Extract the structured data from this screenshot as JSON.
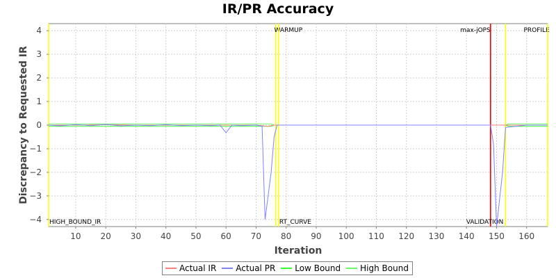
{
  "chart_data": {
    "type": "line",
    "title": "IR/PR Accuracy",
    "xlabel": "Iteration",
    "ylabel": "Discrepancy to Requested IR",
    "xlim": [
      1,
      167
    ],
    "ylim": [
      -4.3,
      4.3
    ],
    "x_ticks": [
      10,
      20,
      30,
      40,
      50,
      60,
      70,
      80,
      90,
      100,
      110,
      120,
      130,
      140,
      150,
      160
    ],
    "y_ticks": [
      -4,
      -3,
      -2,
      -1,
      0,
      1,
      2,
      3,
      4
    ],
    "grid": true,
    "legend_position": "bottom",
    "markers": [
      {
        "label": "HIGH_BOUND_IR",
        "x": 1,
        "color": "#ffff00",
        "label_position": "bottom"
      },
      {
        "label": "WARMUP",
        "x": 76.5,
        "color": "#ffff00",
        "label_position": "top"
      },
      {
        "label": "RT_CURVE",
        "x": 77.5,
        "color": "#ffff00",
        "label_position": "bottom"
      },
      {
        "label": "max-jOPS",
        "x": 148,
        "color": "#ff0000",
        "label_position": "top"
      },
      {
        "label": "VALIDATION",
        "x": 148,
        "color": "#ff0000",
        "label_position": "bottom"
      },
      {
        "label": "PROFILE",
        "x": 153,
        "color": "#ffff00",
        "label_position": "top"
      },
      {
        "label": "",
        "x": 167,
        "color": "#ffff00",
        "label_position": "none"
      }
    ],
    "series": [
      {
        "name": "Actual IR",
        "color": "#ff7f7f",
        "x": [
          1,
          10,
          20,
          30,
          40,
          50,
          60,
          70,
          74,
          76,
          80,
          100,
          120,
          140,
          147,
          150,
          153,
          160,
          167
        ],
        "y": [
          0,
          0,
          0.02,
          0,
          0,
          0,
          0,
          0,
          -0.05,
          0,
          0,
          0,
          0,
          0,
          0,
          0,
          0,
          0,
          0
        ]
      },
      {
        "name": "Actual PR",
        "color": "#8080ff",
        "x": [
          1,
          5,
          10,
          15,
          20,
          25,
          30,
          35,
          40,
          45,
          50,
          55,
          58,
          60,
          62,
          65,
          70,
          72,
          73,
          75,
          76,
          77,
          80,
          100,
          120,
          140,
          147,
          148,
          149,
          150,
          152,
          153,
          160,
          167
        ],
        "y": [
          0,
          -0.03,
          0.02,
          -0.02,
          0.03,
          -0.03,
          0,
          -0.02,
          0.02,
          -0.02,
          0,
          -0.02,
          0,
          -0.32,
          0,
          -0.02,
          0,
          -0.05,
          -4.0,
          -2.0,
          -0.5,
          0,
          0,
          0,
          0,
          0,
          0,
          0,
          -0.8,
          -4.3,
          -2.0,
          -0.1,
          0,
          0
        ]
      },
      {
        "name": "Low Bound",
        "color": "#33ff33",
        "x": [
          1,
          75,
          76,
          153,
          154,
          167
        ],
        "y": [
          -0.05,
          -0.05,
          0,
          0,
          -0.05,
          -0.05
        ]
      },
      {
        "name": "High Bound",
        "color": "#66ff66",
        "x": [
          1,
          75,
          76,
          153,
          154,
          167
        ],
        "y": [
          0.05,
          0.05,
          0,
          0,
          0.05,
          0.05
        ]
      }
    ]
  }
}
